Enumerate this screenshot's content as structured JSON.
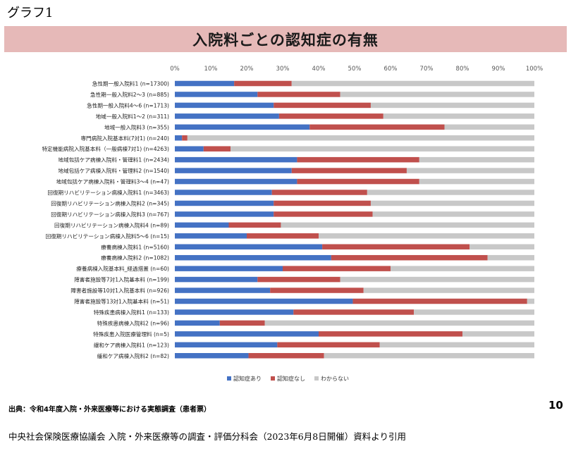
{
  "figure_label": "グラフ1",
  "page_number": "10",
  "source_note": "出典：令和4年度入院・外来医療等における実態調査（患者票）",
  "footer": "中央社会保険医療協議会 入院・外来医療等の調査・評価分科会（2023年6月8日開催）資料より引用",
  "colors": {
    "dementia_yes": "#4472c4",
    "dementia_no": "#c0504d",
    "unknown": "#c8c8c8",
    "title_band": "#e6b9b8"
  },
  "chart_data": {
    "type": "bar",
    "orientation": "horizontal",
    "stacked": true,
    "title": "入院料ごとの認知症の有無",
    "xlim": [
      0,
      100
    ],
    "x_ticks": [
      "0%",
      "10%",
      "20%",
      "30%",
      "40%",
      "50%",
      "60%",
      "70%",
      "80%",
      "90%",
      "100%"
    ],
    "legend_position": "bottom",
    "categories": [
      "急性期一般入院料1 (n=17300)",
      "急性期一般入院料2～3 (n=885)",
      "急性期一般入院料4～6 (n=1713)",
      "地域一般入院料1～2 (n=311)",
      "地域一般入院料3 (n=355)",
      "専門病院入院基本料(7対1) (n=240)",
      "特定機能病院入院基本料（一般病棟7対1) (n=4263)",
      "地域包括ケア病棟入院料・管理料1 (n=2434)",
      "地域包括ケア病棟入院料・管理料2 (n=1540)",
      "地域包括ケア病棟入院料・管理料3～4 (n=47)",
      "回復期リハビリテーション病棟入院料1 (n=3463)",
      "回復期リハビリテーション病棟入院料2 (n=345)",
      "回復期リハビリテーション病棟入院料3 (n=767)",
      "回復期リハビリテーション病棟入院料4 (n=89)",
      "回復期リハビリテーション病棟入院料5～6 (n=15)",
      "療養病棟入院料1 (n=5160)",
      "療養病棟入院料2 (n=1082)",
      "療養病棟入院基本料_経過措置 (n=60)",
      "障害者施設等7対1入院基本料 (n=199)",
      "障害者施設等10対1入院基本料 (n=926)",
      "障害者施設等13対1入院基本料 (n=51)",
      "特殊疾患病棟入院料1 (n=133)",
      "特殊疾患病棟入院料2 (n=96)",
      "特殊疾患入院医療管理料 (n=5)",
      "緩和ケア病棟入院料1 (n=123)",
      "緩和ケア病棟入院料2 (n=82)"
    ],
    "series": [
      {
        "name": "認知症あり",
        "values": [
          16.5,
          23,
          27.5,
          29,
          37.5,
          2,
          8,
          34,
          32.5,
          34,
          27,
          27.5,
          27.5,
          15,
          20,
          41,
          43.5,
          30,
          23,
          26.5,
          49.5,
          33,
          12.5,
          40,
          28.5,
          20.5
        ]
      },
      {
        "name": "認知症なし",
        "values": [
          16,
          23,
          27,
          29,
          37.5,
          1.5,
          7.5,
          34,
          32,
          34,
          26.5,
          27,
          27.5,
          14.5,
          20,
          41,
          43.5,
          30,
          23,
          26,
          48.5,
          33.5,
          12.5,
          40,
          28.5,
          21
        ]
      },
      {
        "name": "わからない",
        "values": [
          67.5,
          54,
          45.5,
          42,
          25,
          96.5,
          84.5,
          32,
          35.5,
          32,
          46.5,
          45.5,
          45,
          70.5,
          60,
          18,
          13,
          40,
          54,
          47.5,
          2,
          33.5,
          75,
          20,
          43,
          58.5
        ]
      }
    ]
  }
}
